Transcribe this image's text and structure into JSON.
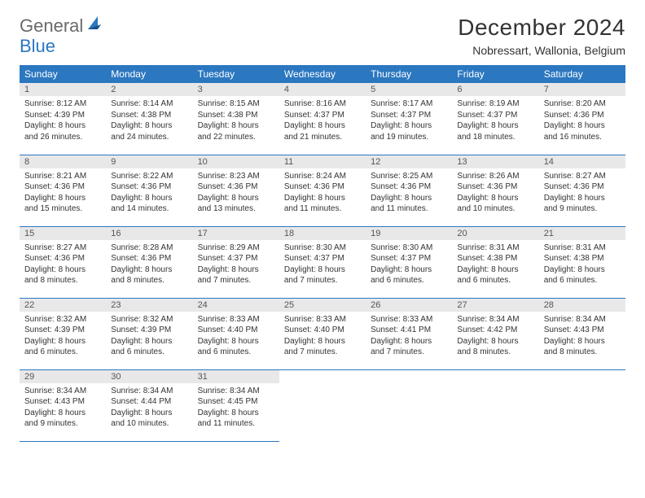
{
  "logo": {
    "main": "General",
    "accent": "Blue"
  },
  "title": "December 2024",
  "location": "Nobressart, Wallonia, Belgium",
  "colors": {
    "header_bg": "#2b77c0",
    "header_text": "#ffffff",
    "daynum_bg": "#e8e8e8",
    "border": "#2b77c0",
    "logo_gray": "#6a6a6a",
    "logo_blue": "#2b77c0"
  },
  "day_labels": [
    "Sunday",
    "Monday",
    "Tuesday",
    "Wednesday",
    "Thursday",
    "Friday",
    "Saturday"
  ],
  "weeks": [
    [
      {
        "n": "1",
        "sr": "8:12 AM",
        "ss": "4:39 PM",
        "dl": "8 hours and 26 minutes."
      },
      {
        "n": "2",
        "sr": "8:14 AM",
        "ss": "4:38 PM",
        "dl": "8 hours and 24 minutes."
      },
      {
        "n": "3",
        "sr": "8:15 AM",
        "ss": "4:38 PM",
        "dl": "8 hours and 22 minutes."
      },
      {
        "n": "4",
        "sr": "8:16 AM",
        "ss": "4:37 PM",
        "dl": "8 hours and 21 minutes."
      },
      {
        "n": "5",
        "sr": "8:17 AM",
        "ss": "4:37 PM",
        "dl": "8 hours and 19 minutes."
      },
      {
        "n": "6",
        "sr": "8:19 AM",
        "ss": "4:37 PM",
        "dl": "8 hours and 18 minutes."
      },
      {
        "n": "7",
        "sr": "8:20 AM",
        "ss": "4:36 PM",
        "dl": "8 hours and 16 minutes."
      }
    ],
    [
      {
        "n": "8",
        "sr": "8:21 AM",
        "ss": "4:36 PM",
        "dl": "8 hours and 15 minutes."
      },
      {
        "n": "9",
        "sr": "8:22 AM",
        "ss": "4:36 PM",
        "dl": "8 hours and 14 minutes."
      },
      {
        "n": "10",
        "sr": "8:23 AM",
        "ss": "4:36 PM",
        "dl": "8 hours and 13 minutes."
      },
      {
        "n": "11",
        "sr": "8:24 AM",
        "ss": "4:36 PM",
        "dl": "8 hours and 11 minutes."
      },
      {
        "n": "12",
        "sr": "8:25 AM",
        "ss": "4:36 PM",
        "dl": "8 hours and 11 minutes."
      },
      {
        "n": "13",
        "sr": "8:26 AM",
        "ss": "4:36 PM",
        "dl": "8 hours and 10 minutes."
      },
      {
        "n": "14",
        "sr": "8:27 AM",
        "ss": "4:36 PM",
        "dl": "8 hours and 9 minutes."
      }
    ],
    [
      {
        "n": "15",
        "sr": "8:27 AM",
        "ss": "4:36 PM",
        "dl": "8 hours and 8 minutes."
      },
      {
        "n": "16",
        "sr": "8:28 AM",
        "ss": "4:36 PM",
        "dl": "8 hours and 8 minutes."
      },
      {
        "n": "17",
        "sr": "8:29 AM",
        "ss": "4:37 PM",
        "dl": "8 hours and 7 minutes."
      },
      {
        "n": "18",
        "sr": "8:30 AM",
        "ss": "4:37 PM",
        "dl": "8 hours and 7 minutes."
      },
      {
        "n": "19",
        "sr": "8:30 AM",
        "ss": "4:37 PM",
        "dl": "8 hours and 6 minutes."
      },
      {
        "n": "20",
        "sr": "8:31 AM",
        "ss": "4:38 PM",
        "dl": "8 hours and 6 minutes."
      },
      {
        "n": "21",
        "sr": "8:31 AM",
        "ss": "4:38 PM",
        "dl": "8 hours and 6 minutes."
      }
    ],
    [
      {
        "n": "22",
        "sr": "8:32 AM",
        "ss": "4:39 PM",
        "dl": "8 hours and 6 minutes."
      },
      {
        "n": "23",
        "sr": "8:32 AM",
        "ss": "4:39 PM",
        "dl": "8 hours and 6 minutes."
      },
      {
        "n": "24",
        "sr": "8:33 AM",
        "ss": "4:40 PM",
        "dl": "8 hours and 6 minutes."
      },
      {
        "n": "25",
        "sr": "8:33 AM",
        "ss": "4:40 PM",
        "dl": "8 hours and 7 minutes."
      },
      {
        "n": "26",
        "sr": "8:33 AM",
        "ss": "4:41 PM",
        "dl": "8 hours and 7 minutes."
      },
      {
        "n": "27",
        "sr": "8:34 AM",
        "ss": "4:42 PM",
        "dl": "8 hours and 8 minutes."
      },
      {
        "n": "28",
        "sr": "8:34 AM",
        "ss": "4:43 PM",
        "dl": "8 hours and 8 minutes."
      }
    ],
    [
      {
        "n": "29",
        "sr": "8:34 AM",
        "ss": "4:43 PM",
        "dl": "8 hours and 9 minutes."
      },
      {
        "n": "30",
        "sr": "8:34 AM",
        "ss": "4:44 PM",
        "dl": "8 hours and 10 minutes."
      },
      {
        "n": "31",
        "sr": "8:34 AM",
        "ss": "4:45 PM",
        "dl": "8 hours and 11 minutes."
      },
      null,
      null,
      null,
      null
    ]
  ],
  "labels": {
    "sunrise": "Sunrise:",
    "sunset": "Sunset:",
    "daylight": "Daylight:"
  }
}
